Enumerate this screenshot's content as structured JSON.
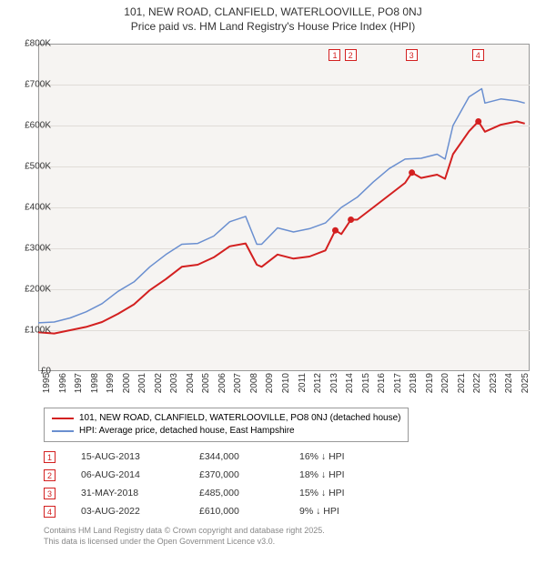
{
  "title_line1": "101, NEW ROAD, CLANFIELD, WATERLOOVILLE, PO8 0NJ",
  "title_line2": "Price paid vs. HM Land Registry's House Price Index (HPI)",
  "chart": {
    "type": "line",
    "background_color": "#f6f4f2",
    "grid_color": "#e0dcd8",
    "border_color": "#999999",
    "x_years": [
      1995,
      1996,
      1997,
      1998,
      1999,
      2000,
      2001,
      2002,
      2003,
      2004,
      2005,
      2006,
      2007,
      2008,
      2009,
      2010,
      2011,
      2012,
      2013,
      2014,
      2015,
      2016,
      2017,
      2018,
      2019,
      2020,
      2021,
      2022,
      2023,
      2024,
      2025
    ],
    "xlim": [
      1995,
      2025.8
    ],
    "y_ticks": [
      0,
      100,
      200,
      300,
      400,
      500,
      600,
      700,
      800
    ],
    "y_tick_labels": [
      "£0",
      "£100K",
      "£200K",
      "£300K",
      "£400K",
      "£500K",
      "£600K",
      "£700K",
      "£800K"
    ],
    "ylim": [
      0,
      800
    ],
    "series": [
      {
        "name": "property",
        "label": "101, NEW ROAD, CLANFIELD, WATERLOOVILLE, PO8 0NJ (detached house)",
        "color": "#d32020",
        "width": 2,
        "data": [
          [
            1995,
            95
          ],
          [
            1996,
            92
          ],
          [
            1997,
            100
          ],
          [
            1998,
            108
          ],
          [
            1999,
            120
          ],
          [
            2000,
            140
          ],
          [
            2001,
            163
          ],
          [
            2002,
            198
          ],
          [
            2003,
            225
          ],
          [
            2004,
            255
          ],
          [
            2005,
            260
          ],
          [
            2006,
            278
          ],
          [
            2007,
            305
          ],
          [
            2008,
            312
          ],
          [
            2008.7,
            260
          ],
          [
            2009,
            255
          ],
          [
            2010,
            285
          ],
          [
            2011,
            275
          ],
          [
            2012,
            280
          ],
          [
            2013,
            295
          ],
          [
            2013.62,
            344
          ],
          [
            2014,
            335
          ],
          [
            2014.6,
            370
          ],
          [
            2015,
            370
          ],
          [
            2016,
            400
          ],
          [
            2017,
            430
          ],
          [
            2018,
            460
          ],
          [
            2018.42,
            485
          ],
          [
            2019,
            472
          ],
          [
            2020,
            480
          ],
          [
            2020.5,
            470
          ],
          [
            2021,
            530
          ],
          [
            2022,
            586
          ],
          [
            2022.59,
            610
          ],
          [
            2023,
            585
          ],
          [
            2024,
            602
          ],
          [
            2025,
            610
          ],
          [
            2025.5,
            605
          ]
        ]
      },
      {
        "name": "hpi",
        "label": "HPI: Average price, detached house, East Hampshire",
        "color": "#6a8fd0",
        "width": 1.5,
        "data": [
          [
            1995,
            118
          ],
          [
            1996,
            120
          ],
          [
            1997,
            130
          ],
          [
            1998,
            145
          ],
          [
            1999,
            165
          ],
          [
            2000,
            195
          ],
          [
            2001,
            218
          ],
          [
            2002,
            255
          ],
          [
            2003,
            285
          ],
          [
            2004,
            310
          ],
          [
            2005,
            312
          ],
          [
            2006,
            330
          ],
          [
            2007,
            365
          ],
          [
            2008,
            378
          ],
          [
            2008.7,
            310
          ],
          [
            2009,
            310
          ],
          [
            2010,
            350
          ],
          [
            2011,
            340
          ],
          [
            2012,
            348
          ],
          [
            2013,
            362
          ],
          [
            2014,
            400
          ],
          [
            2015,
            425
          ],
          [
            2016,
            462
          ],
          [
            2017,
            495
          ],
          [
            2018,
            518
          ],
          [
            2019,
            520
          ],
          [
            2020,
            530
          ],
          [
            2020.5,
            518
          ],
          [
            2021,
            600
          ],
          [
            2022,
            670
          ],
          [
            2022.8,
            690
          ],
          [
            2023,
            655
          ],
          [
            2024,
            665
          ],
          [
            2025,
            660
          ],
          [
            2025.5,
            655
          ]
        ]
      }
    ],
    "transaction_markers": [
      {
        "n": "1",
        "year": 2013.62,
        "price": 344
      },
      {
        "n": "2",
        "year": 2014.6,
        "price": 370
      },
      {
        "n": "3",
        "year": 2018.42,
        "price": 485
      },
      {
        "n": "4",
        "year": 2022.59,
        "price": 610
      }
    ]
  },
  "legend": {
    "items": [
      {
        "color": "#d32020",
        "width": 2,
        "text": "101, NEW ROAD, CLANFIELD, WATERLOOVILLE, PO8 0NJ (detached house)"
      },
      {
        "color": "#6a8fd0",
        "width": 1.5,
        "text": "HPI: Average price, detached house, East Hampshire"
      }
    ]
  },
  "transactions": [
    {
      "n": "1",
      "date": "15-AUG-2013",
      "price": "£344,000",
      "delta": "16% ↓ HPI"
    },
    {
      "n": "2",
      "date": "06-AUG-2014",
      "price": "£370,000",
      "delta": "18% ↓ HPI"
    },
    {
      "n": "3",
      "date": "31-MAY-2018",
      "price": "£485,000",
      "delta": "15% ↓ HPI"
    },
    {
      "n": "4",
      "date": "03-AUG-2022",
      "price": "£610,000",
      "delta": "9% ↓ HPI"
    }
  ],
  "footer_line1": "Contains HM Land Registry data © Crown copyright and database right 2025.",
  "footer_line2": "This data is licensed under the Open Government Licence v3.0."
}
